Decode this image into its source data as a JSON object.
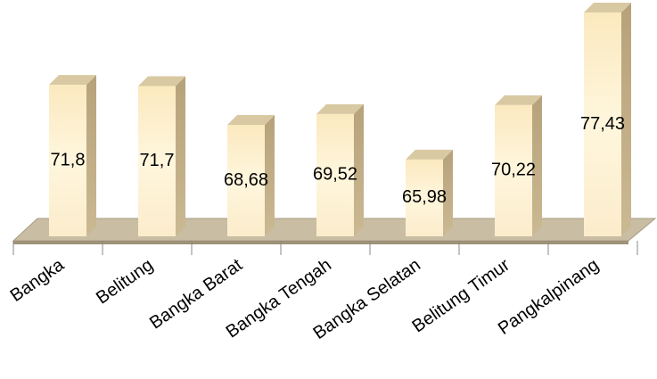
{
  "chart_data": {
    "type": "bar",
    "categories": [
      "Bangka",
      "Belitung",
      "Bangka Barat",
      "Bangka Tengah",
      "Bangka Selatan",
      "Belitung Timur",
      "Pangkalpinang"
    ],
    "values": [
      71.8,
      71.7,
      68.68,
      69.52,
      65.98,
      70.22,
      77.43
    ],
    "value_labels": [
      "71,8",
      "71,7",
      "68,68",
      "69,52",
      "65,98",
      "70,22",
      "77,43"
    ],
    "ylim": [
      60,
      80
    ],
    "color": "#fdf0cc"
  }
}
